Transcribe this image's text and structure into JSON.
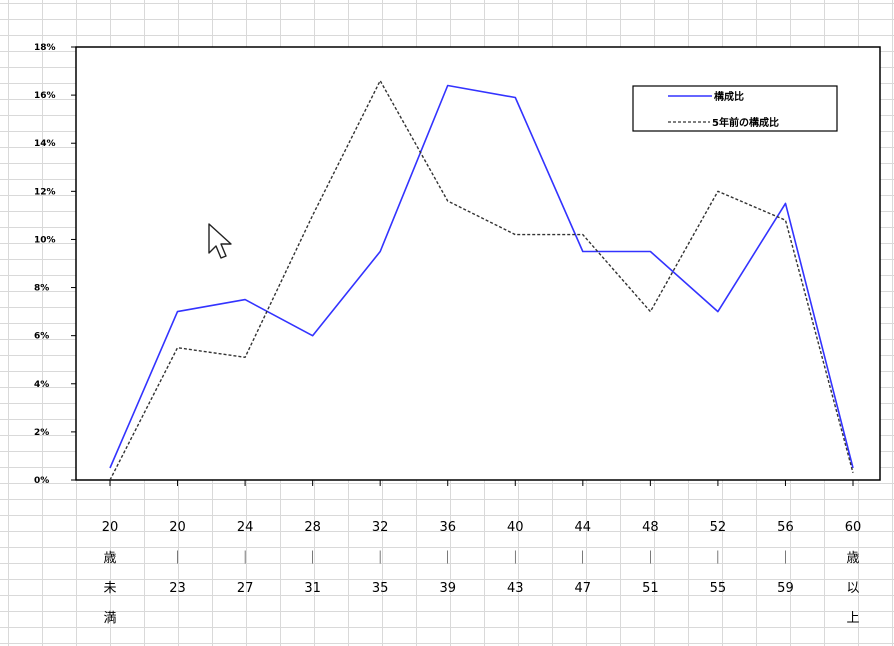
{
  "chart_data": {
    "type": "line",
    "categories": [
      [
        "20",
        "歳",
        "未",
        "満"
      ],
      [
        "20",
        "｜",
        "23"
      ],
      [
        "24",
        "｜",
        "27"
      ],
      [
        "28",
        "｜",
        "31"
      ],
      [
        "32",
        "｜",
        "35"
      ],
      [
        "36",
        "｜",
        "39"
      ],
      [
        "40",
        "｜",
        "43"
      ],
      [
        "44",
        "｜",
        "47"
      ],
      [
        "48",
        "｜",
        "51"
      ],
      [
        "52",
        "｜",
        "55"
      ],
      [
        "56",
        "｜",
        "59"
      ],
      [
        "60",
        "歳",
        "以",
        "上"
      ]
    ],
    "series": [
      {
        "name": "構成比",
        "color": "#3333ff",
        "dash": "solid",
        "values": [
          0.5,
          7.0,
          7.5,
          6.0,
          9.5,
          16.4,
          15.9,
          9.5,
          9.5,
          7.0,
          11.5,
          0.5
        ]
      },
      {
        "name": "5年前の構成比",
        "color": "#333333",
        "dash": "dashed",
        "values": [
          0.0,
          5.5,
          5.1,
          11.0,
          16.6,
          11.6,
          10.2,
          10.2,
          7.0,
          12.0,
          10.8,
          0.3
        ]
      }
    ],
    "yticks": [
      "0%",
      "2%",
      "4%",
      "6%",
      "8%",
      "10%",
      "12%",
      "14%",
      "16%",
      "18%"
    ],
    "ylim": [
      0,
      18
    ],
    "legend_position": "top-right",
    "grid": false
  },
  "icons": {
    "cursor": "mouse-pointer-icon"
  }
}
